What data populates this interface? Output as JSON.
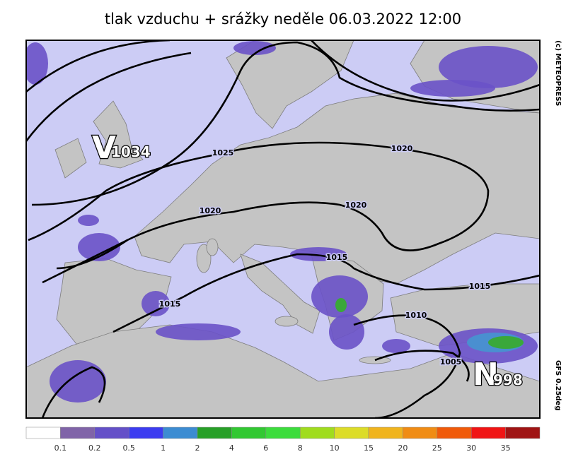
{
  "title": "tlak vzduchu + srážky  neděle 06.03.2022 12:00",
  "centers": [
    {
      "letter": "V",
      "value": "1034"
    },
    {
      "letter": "N",
      "value": "998"
    }
  ],
  "isobar_labels": [
    "1025",
    "1020",
    "1020",
    "1020",
    "1015",
    "1015",
    "1015",
    "1010",
    "1005"
  ],
  "credits": {
    "copyright": "(c) METEOPRESS",
    "model": "GFS 0.25deg"
  },
  "legend": {
    "colors": [
      "#ffffff",
      "#8064a8",
      "#6450c8",
      "#3c3cf0",
      "#3c8cd2",
      "#28a028",
      "#32c832",
      "#3cdc3c",
      "#a0dc1e",
      "#dcdc28",
      "#f0b41e",
      "#f08c14",
      "#f05a0a",
      "#f01414",
      "#a01414"
    ],
    "labels": [
      "0.1",
      "0.2",
      "0.5",
      "1",
      "2",
      "4",
      "6",
      "8",
      "10",
      "15",
      "20",
      "25",
      "30",
      "35"
    ]
  }
}
